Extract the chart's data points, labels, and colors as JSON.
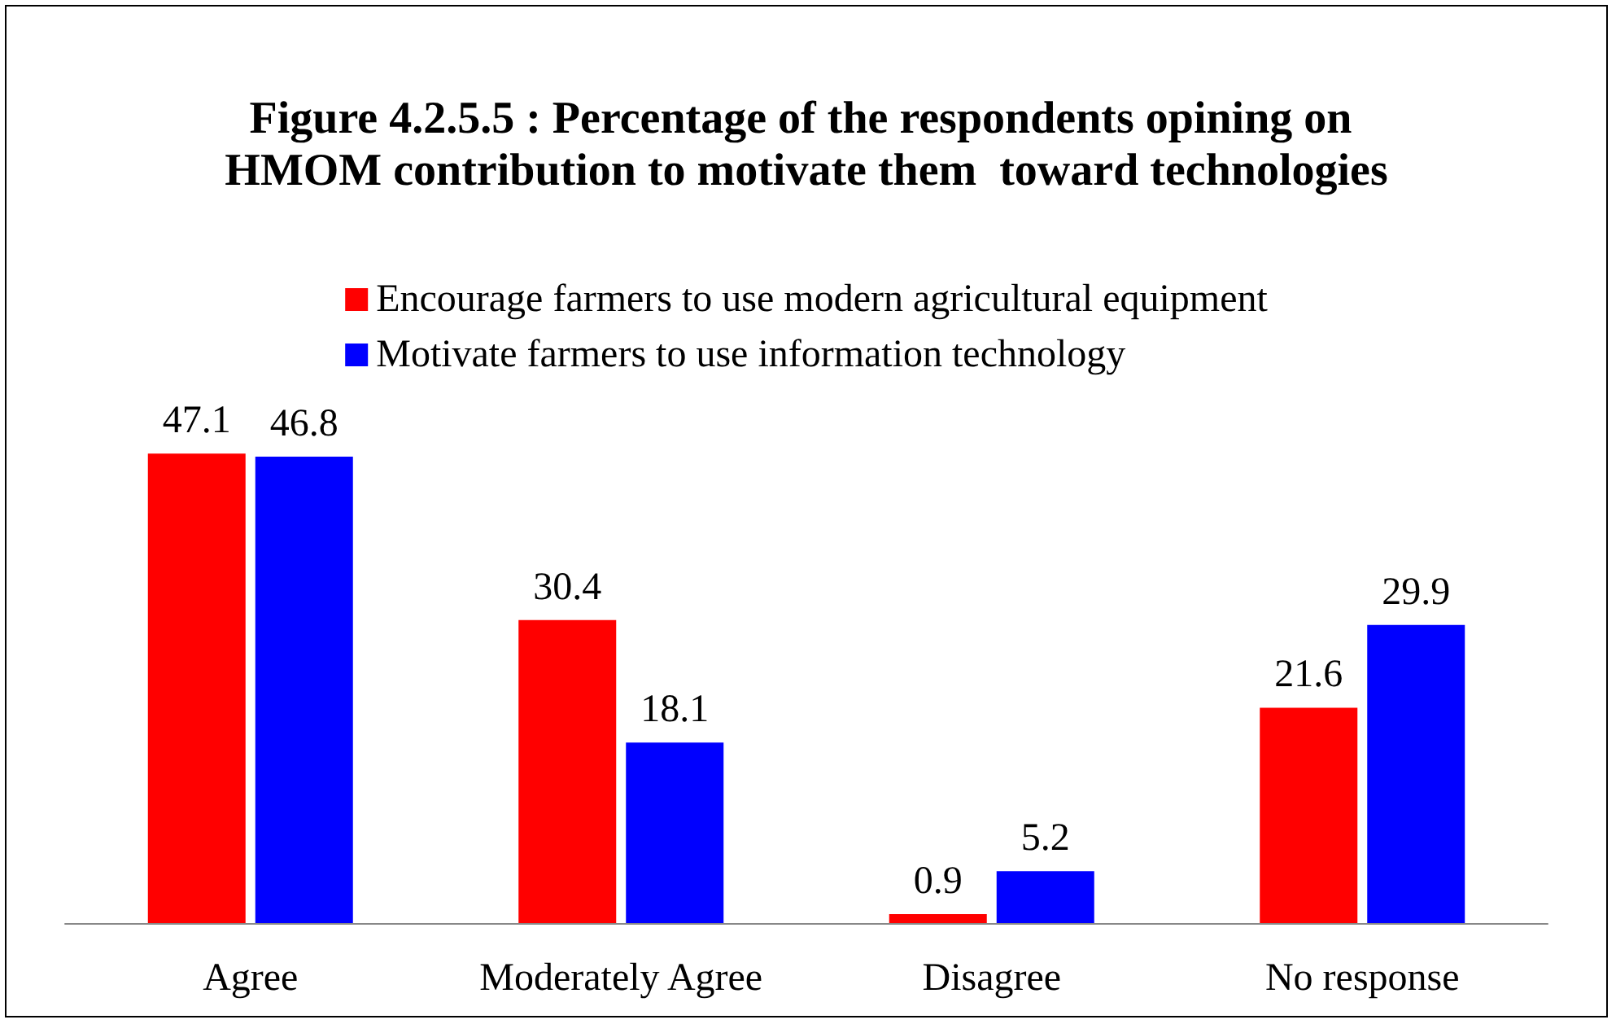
{
  "chart_data": {
    "type": "bar",
    "title": "Figure 4.2.5.5 : Percentage of the respondents opining on HMOM contribution to motivate them  toward technologies",
    "categories": [
      "Agree",
      "Moderately Agree",
      "Disagree",
      "No response"
    ],
    "series": [
      {
        "name": "Encourage farmers to use modern agricultural equipment",
        "color": "#ff0000",
        "values": [
          47.1,
          30.4,
          0.9,
          21.6
        ]
      },
      {
        "name": "Motivate farmers to use information technology",
        "color": "#0000ff",
        "values": [
          46.8,
          18.1,
          5.2,
          29.9
        ]
      }
    ],
    "data_labels": true,
    "legend": "top"
  }
}
